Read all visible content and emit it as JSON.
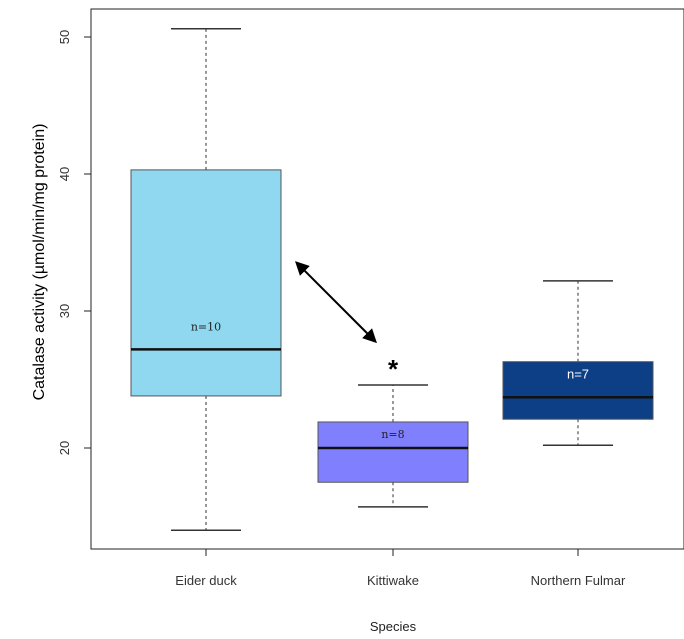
{
  "chart_data": {
    "type": "box",
    "xlabel": "Species",
    "ylabel": "Catalase activity (µmol/min/mg protein)",
    "ylim": [
      12.5,
      52.5
    ],
    "yticks": [
      20,
      30,
      40,
      50
    ],
    "grid": false,
    "categories": [
      "Eider duck",
      "Kittiwake",
      "Northern Fulmar"
    ],
    "boxes": [
      {
        "category": "Eider duck",
        "whisker_low": 14.0,
        "q1": 23.8,
        "median": 27.2,
        "q3": 40.3,
        "whisker_high": 50.6,
        "n_label": "n=10",
        "fill": "#8fd8ef"
      },
      {
        "category": "Kittiwake",
        "whisker_low": 15.7,
        "q1": 17.5,
        "median": 20.0,
        "q3": 21.9,
        "whisker_high": 24.6,
        "n_label": "n=8",
        "fill": "#8080ff"
      },
      {
        "category": "Northern Fulmar",
        "whisker_low": 20.2,
        "q1": 22.1,
        "median": 23.7,
        "q3": 26.3,
        "whisker_high": 32.2,
        "n_label": "n=7",
        "fill": "#0c3f85"
      }
    ],
    "annotations": [
      {
        "type": "arrow",
        "from": {
          "category": "Eider duck",
          "y": 33.5
        },
        "to": {
          "category": "Kittiwake",
          "y": 27.8
        }
      },
      {
        "type": "text",
        "text": "*",
        "category": "Kittiwake",
        "y": 25.7
      }
    ]
  }
}
